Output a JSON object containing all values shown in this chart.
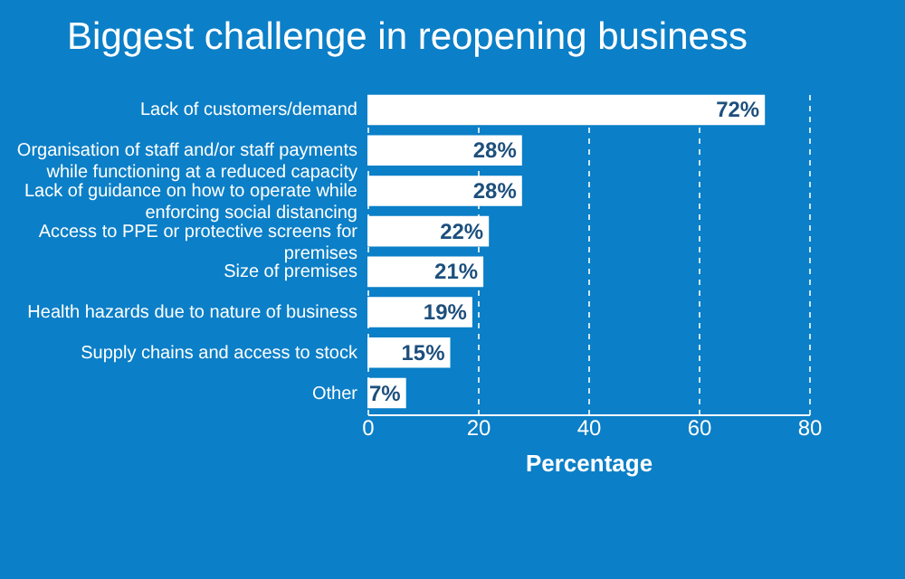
{
  "chart_data": {
    "type": "bar",
    "title": "Biggest challenge in reopening business",
    "xlabel": "Percentage",
    "orientation": "horizontal",
    "categories": [
      "Lack of customers/demand",
      "Organisation of staff and/or staff payments while functioning at a reduced capacity",
      "Lack of guidance on how to operate while enforcing social distancing",
      "Access to PPE or protective screens for premises",
      "Size of premises",
      "Health hazards due to nature of business",
      "Supply chains and access to stock",
      "Other"
    ],
    "values": [
      72,
      28,
      28,
      22,
      21,
      19,
      15,
      7
    ],
    "value_labels": [
      "72%",
      "28%",
      "28%",
      "22%",
      "21%",
      "19%",
      "15%",
      "7%"
    ],
    "color": "#ffffff",
    "xlim": [
      0,
      80
    ],
    "xticks": [
      0,
      20,
      40,
      60,
      80
    ],
    "grid": "x"
  }
}
